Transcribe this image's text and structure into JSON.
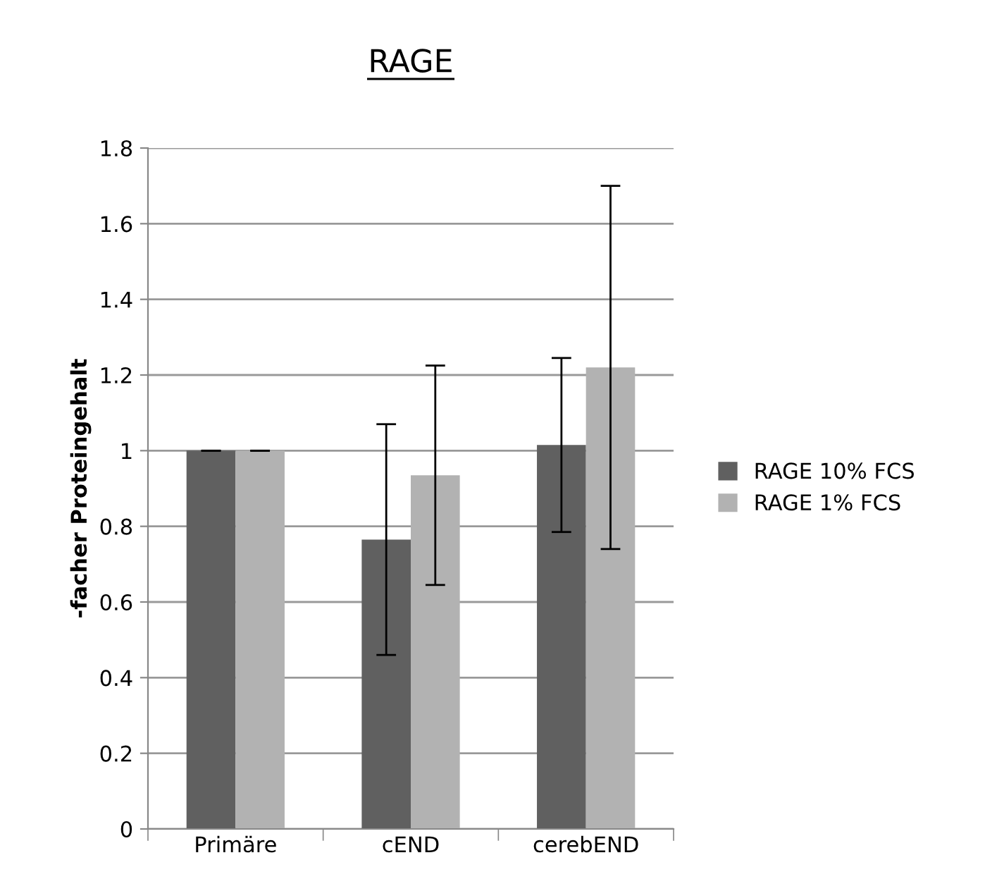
{
  "chart_data": {
    "type": "bar",
    "title": "RAGE",
    "ylabel": "-facher Proteingehalt",
    "categories": [
      "Primäre",
      "cEND",
      "cerebEND"
    ],
    "series": [
      {
        "name": "RAGE 10% FCS",
        "color": "#606060",
        "values": [
          1,
          0.765,
          1.015
        ],
        "errors": [
          0,
          0.305,
          0.23
        ]
      },
      {
        "name": "RAGE 1% FCS",
        "color": "#b2b2b2",
        "values": [
          1,
          0.935,
          1.22
        ],
        "errors": [
          0,
          0.29,
          0.48
        ]
      }
    ],
    "ylim": [
      0,
      1.8
    ],
    "yticks": [
      0,
      0.2,
      0.4,
      0.6,
      0.8,
      1,
      1.2,
      1.4,
      1.6,
      1.8
    ],
    "grid": "y",
    "legend": "right"
  }
}
